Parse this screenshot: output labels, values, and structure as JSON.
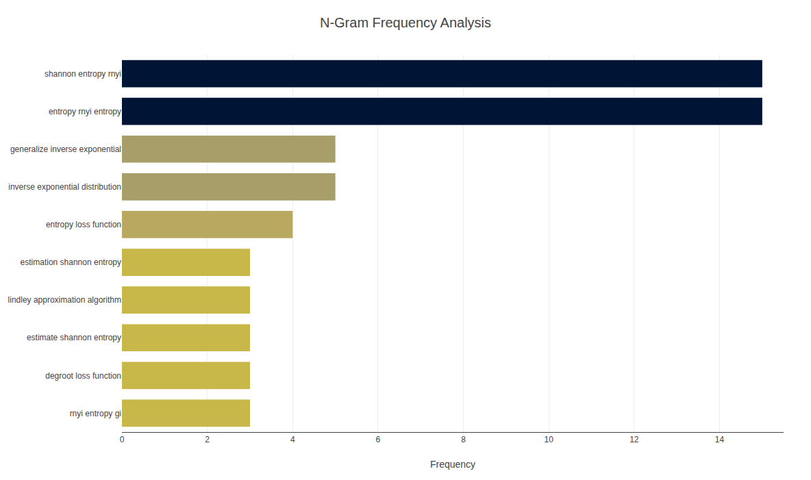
{
  "chart_data": {
    "type": "bar",
    "orientation": "horizontal",
    "title": "N-Gram Frequency Analysis",
    "xlabel": "Frequency",
    "categories": [
      "rnyi entropy gi",
      "degroot loss function",
      "estimate shannon entropy",
      "lindley approximation algorithm",
      "estimation shannon entropy",
      "entropy loss function",
      "inverse exponential distribution",
      "generalize inverse exponential",
      "entropy rnyi entropy",
      "shannon entropy rnyi"
    ],
    "values": [
      3,
      3,
      3,
      3,
      3,
      4,
      5,
      5,
      15,
      15
    ],
    "colors": [
      "#c8b84a",
      "#c8b84a",
      "#c8b84a",
      "#c8b84a",
      "#c8b84a",
      "#b8a860",
      "#a89e6a",
      "#a89e6a",
      "#001535",
      "#001535"
    ],
    "xlim": [
      0,
      15.5
    ],
    "xticks": [
      0,
      2,
      4,
      6,
      8,
      10,
      12,
      14
    ],
    "grid": true
  }
}
